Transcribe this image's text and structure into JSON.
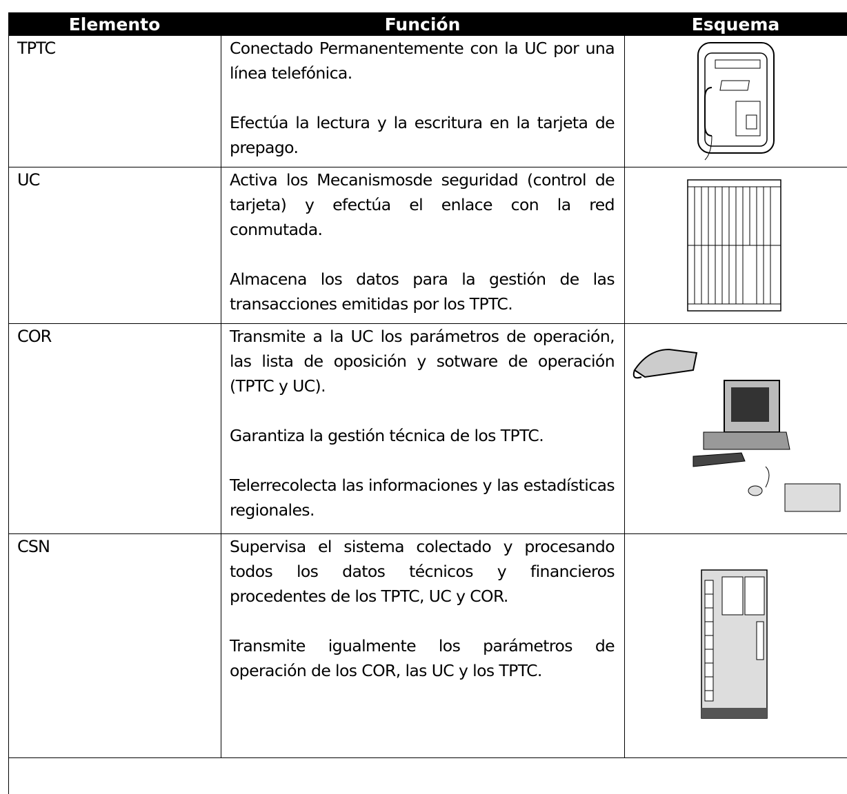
{
  "table": {
    "headers": [
      "Elemento",
      "Función",
      "Esquema"
    ],
    "rows": [
      {
        "element": "TPTC",
        "paragraphs": [
          "Conectado Permanentemente con la UC por una línea telefónica.",
          "Efectúa la lectura y la escritura en la tarjeta de prepago."
        ]
      },
      {
        "element": "UC",
        "paragraphs": [
          "Activa los Mecanismosde seguridad (control de tarjeta) y efectúa el enlace con la red conmutada.",
          "Almacena los datos para la gestión de las transacciones emitidas por los TPTC."
        ]
      },
      {
        "element": "COR",
        "paragraphs": [
          "Transmite a la UC los parámetros de operación, las lista de oposición y sotware de operación (TPTC y UC).",
          "Garantiza la gestión técnica de los TPTC.",
          "Telerrecolecta las informaciones y las estadísticas regionales."
        ]
      },
      {
        "element": "CSN",
        "paragraphs": [
          "Supervisa el sistema colectado y procesando todos los datos técnicos y financieros procedentes de los TPTC, UC y COR.",
          "Transmite igualmente los parámetros de operación de los COR,  las UC y los TPTC."
        ]
      }
    ]
  }
}
